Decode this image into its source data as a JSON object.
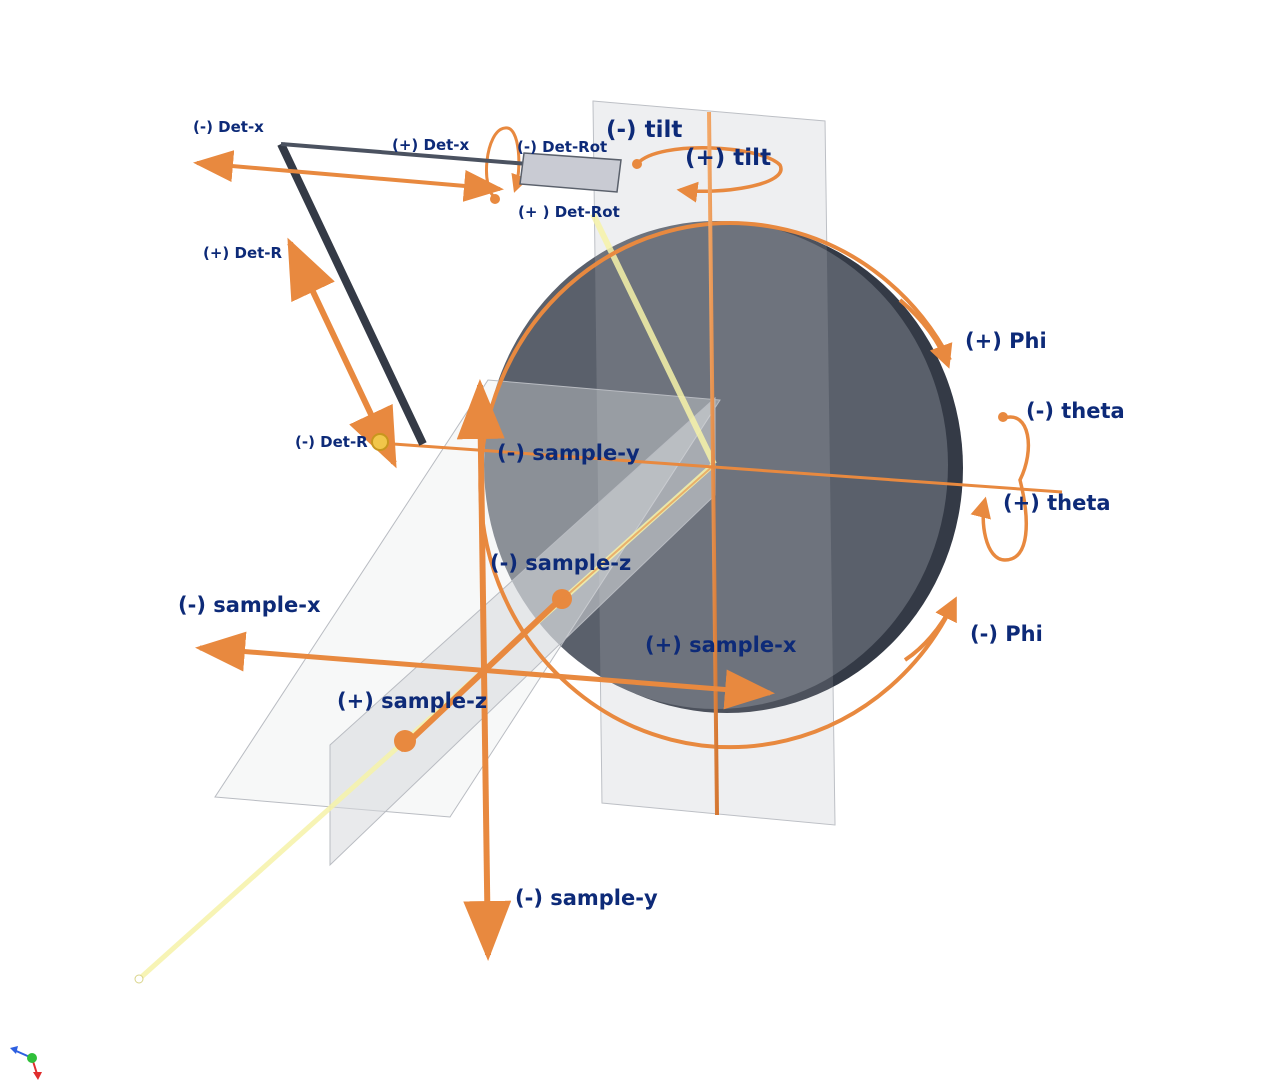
{
  "colors": {
    "axis_orange": "#e8893f",
    "axis_orange_dark": "#b8611f",
    "disc_fill": "#5a606b",
    "disc_edge": "#343a46",
    "beam": "#f6f2a8",
    "plane_fill": "#e9eaec",
    "plane_stroke": "#b9bcc2",
    "label_navy": "#0d2a78",
    "detector": "#c9cbd3",
    "detector_arm": "#343a46"
  },
  "labels": {
    "det_x_minus": "(-) Det-x",
    "det_x_plus": "(+) Det-x",
    "det_rot_minus": "(-) Det-Rot",
    "det_rot_plus": "(+ ) Det-Rot",
    "tilt_minus": "(-) tilt",
    "tilt_plus": "(+) tilt",
    "det_r_plus": "(+) Det-R",
    "det_r_minus": "(-) Det-R",
    "phi_plus": "(+) Phi",
    "phi_minus": "(-) Phi",
    "theta_minus": "(-) theta",
    "theta_plus": "(+) theta",
    "sample_y_top": "(-) sample-y",
    "sample_y_bottom": "(-) sample-y",
    "sample_z_minus": "(-) sample-z",
    "sample_z_plus": "(+) sample-z",
    "sample_x_minus": "(-) sample-x",
    "sample_x_plus": "(+) sample-x"
  },
  "triad_icon": "axis-triad-icon"
}
